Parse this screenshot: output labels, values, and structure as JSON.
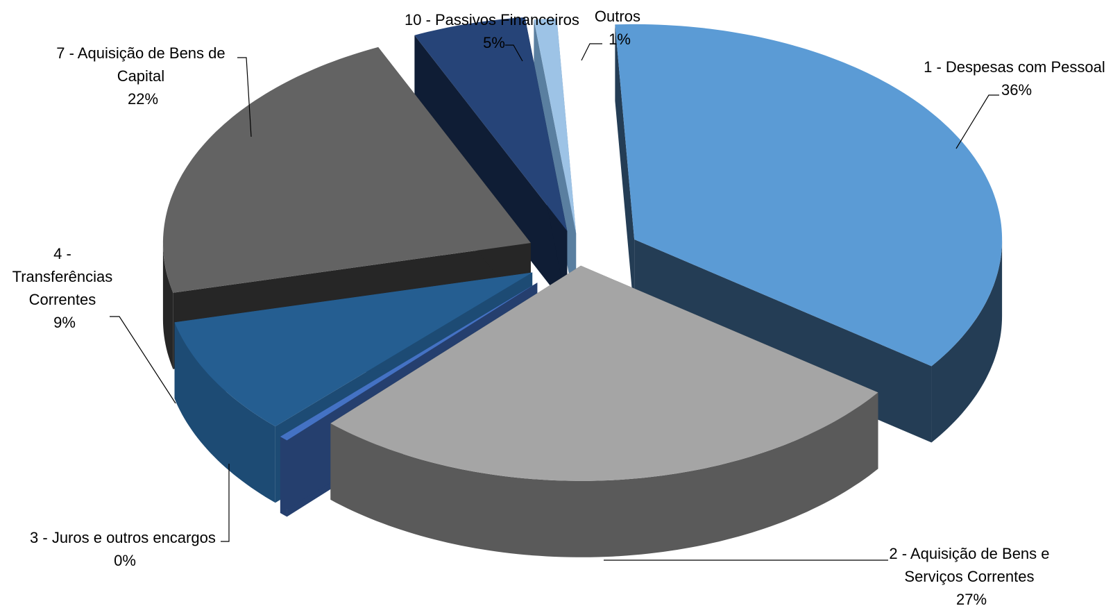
{
  "chart_data": {
    "type": "pie",
    "style": "3d-exploded",
    "title": "",
    "slices": [
      {
        "label_lines": [
          "1 - Despesas com Pessoal"
        ],
        "percent_label": "36%",
        "value": 36,
        "top_color": "#5b9bd5",
        "side_color": "#243d55"
      },
      {
        "label_lines": [
          "2 - Aquisição de Bens e",
          "Serviços Correntes"
        ],
        "percent_label": "27%",
        "value": 27,
        "top_color": "#a5a5a5",
        "side_color": "#5a5a5a"
      },
      {
        "label_lines": [
          "3 - Juros e outros encargos"
        ],
        "percent_label": "0%",
        "value": 0.4,
        "top_color": "#4472c4",
        "side_color": "#253f6e"
      },
      {
        "label_lines": [
          "4 -",
          "Transferências",
          "Correntes"
        ],
        "percent_label": "9%",
        "value": 9,
        "top_color": "#255e91",
        "side_color": "#1d4b74"
      },
      {
        "label_lines": [
          "7 - Aquisição de Bens de",
          "Capital"
        ],
        "percent_label": "22%",
        "value": 22,
        "top_color": "#636363",
        "side_color": "#262626"
      },
      {
        "label_lines": [
          "10 - Passivos Financeiros"
        ],
        "percent_label": "5%",
        "value": 5,
        "top_color": "#264478",
        "side_color": "#0f1d35"
      },
      {
        "label_lines": [
          "Outros"
        ],
        "percent_label": "1%",
        "value": 1,
        "top_color": "#9dc3e6",
        "side_color": "#5a7fa0"
      }
    ]
  }
}
